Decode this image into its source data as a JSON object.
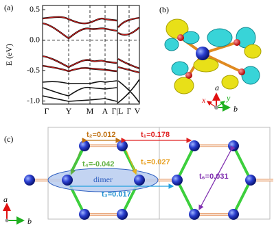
{
  "panel_a": {
    "label": "(a)",
    "y_axis_label": "E (eV)",
    "ylim": [
      -1.05,
      0.57
    ],
    "yticks": [
      {
        "value": 0.5,
        "label": "0.5"
      },
      {
        "value": 0,
        "label": "0.0"
      },
      {
        "value": -0.5,
        "label": "-0.5"
      },
      {
        "value": -1,
        "label": "-1.0"
      }
    ],
    "k_labels": [
      "Γ",
      "Y",
      "M",
      "A",
      "Γ|L",
      "Γ",
      "V"
    ]
  },
  "panel_b": {
    "label": "(b)",
    "axes": [
      "a",
      "b",
      "x",
      "y"
    ]
  },
  "panel_c": {
    "label": "(c)",
    "dimer": "dimer",
    "hoppings": [
      "t₁=0.178",
      "t₂=0.012",
      "t₃=0.017",
      "t₄=-0.042",
      "t₅=0.027",
      "t₆=0.031"
    ],
    "axes": [
      "a",
      "b"
    ]
  }
}
